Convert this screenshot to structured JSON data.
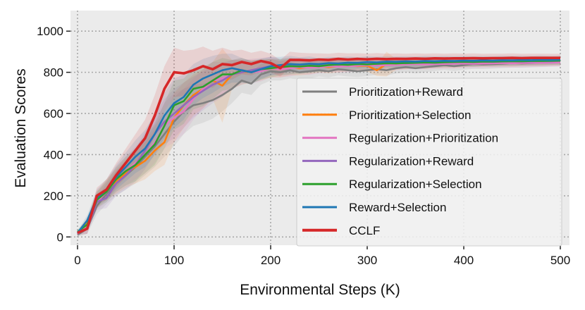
{
  "chart_data": {
    "type": "line",
    "title": "",
    "xlabel": "Environmental Steps (K)",
    "ylabel": "Evaluation Scores",
    "xlim": [
      0,
      500
    ],
    "ylim": [
      -40,
      1100
    ],
    "xticks": [
      0,
      100,
      200,
      300,
      400,
      500
    ],
    "xtick_labels": [
      "0",
      "100",
      "200",
      "300",
      "400",
      "500"
    ],
    "yticks": [
      0,
      200,
      400,
      600,
      800,
      1000
    ],
    "ytick_labels": [
      "0",
      "200",
      "400",
      "600",
      "800",
      "1000"
    ],
    "grid": true,
    "legend_position": "center-right",
    "x": [
      0,
      10,
      20,
      30,
      40,
      50,
      60,
      70,
      80,
      90,
      100,
      110,
      120,
      130,
      140,
      150,
      160,
      170,
      180,
      190,
      200,
      210,
      220,
      230,
      240,
      250,
      260,
      270,
      280,
      290,
      300,
      310,
      320,
      330,
      340,
      350,
      360,
      370,
      380,
      390,
      400,
      410,
      420,
      430,
      440,
      450,
      460,
      470,
      480,
      490,
      500
    ],
    "series": [
      {
        "name": "Prioritization+Reward",
        "color": "#7f7f7f",
        "values": [
          10,
          40,
          150,
          210,
          260,
          300,
          340,
          390,
          440,
          500,
          560,
          610,
          640,
          650,
          665,
          690,
          720,
          760,
          745,
          790,
          805,
          800,
          810,
          800,
          805,
          810,
          805,
          815,
          810,
          805,
          810,
          815,
          810,
          820,
          825,
          820,
          825,
          830,
          835,
          830,
          835,
          840,
          838,
          840,
          842,
          845,
          843,
          845,
          847,
          848,
          850
        ],
        "band": [
          10,
          25,
          40,
          50,
          60,
          70,
          80,
          90,
          100,
          110,
          120,
          110,
          100,
          95,
          90,
          80,
          70,
          60,
          55,
          50,
          45,
          40,
          40,
          35,
          35,
          30,
          30,
          30,
          30,
          28,
          28,
          28,
          26,
          26,
          25,
          25,
          25,
          24,
          24,
          24,
          23,
          23,
          22,
          22,
          22,
          22,
          21,
          21,
          21,
          20,
          20
        ]
      },
      {
        "name": "Prioritization+Selection",
        "color": "#ff7f0e",
        "values": [
          20,
          70,
          180,
          230,
          270,
          310,
          340,
          370,
          420,
          460,
          580,
          640,
          690,
          720,
          760,
          735,
          790,
          800,
          805,
          810,
          820,
          815,
          825,
          820,
          825,
          830,
          825,
          830,
          835,
          830,
          832,
          810,
          840,
          838,
          840,
          845,
          842,
          845,
          846,
          845,
          848,
          850,
          849,
          850,
          851,
          850,
          852,
          852,
          853,
          853,
          854
        ],
        "band": [
          10,
          25,
          40,
          50,
          60,
          70,
          80,
          90,
          100,
          110,
          120,
          110,
          100,
          95,
          90,
          180,
          70,
          60,
          55,
          50,
          45,
          40,
          40,
          35,
          35,
          30,
          30,
          30,
          30,
          28,
          28,
          28,
          60,
          26,
          25,
          25,
          25,
          24,
          24,
          24,
          23,
          23,
          22,
          22,
          22,
          22,
          21,
          21,
          21,
          20,
          20
        ]
      },
      {
        "name": "Regularization+Prioritization",
        "color": "#e377c2",
        "values": [
          15,
          60,
          170,
          220,
          280,
          320,
          360,
          400,
          460,
          540,
          580,
          610,
          670,
          720,
          760,
          770,
          790,
          810,
          800,
          805,
          820,
          815,
          820,
          825,
          822,
          825,
          830,
          828,
          830,
          832,
          835,
          833,
          835,
          836,
          838,
          840,
          838,
          840,
          841,
          842,
          843,
          842,
          843,
          844,
          845,
          844,
          845,
          846,
          846,
          847,
          848
        ],
        "band": [
          10,
          25,
          40,
          50,
          60,
          70,
          80,
          90,
          100,
          110,
          120,
          110,
          100,
          95,
          90,
          80,
          70,
          60,
          55,
          50,
          45,
          40,
          40,
          35,
          35,
          30,
          30,
          30,
          30,
          28,
          28,
          28,
          26,
          26,
          25,
          25,
          25,
          24,
          24,
          24,
          23,
          23,
          22,
          22,
          22,
          22,
          21,
          21,
          21,
          20,
          20
        ]
      },
      {
        "name": "Regularization+Reward",
        "color": "#9467bd",
        "values": [
          20,
          40,
          170,
          190,
          260,
          300,
          350,
          420,
          500,
          560,
          600,
          640,
          680,
          710,
          740,
          760,
          790,
          800,
          810,
          820,
          830,
          825,
          830,
          835,
          832,
          835,
          838,
          836,
          840,
          838,
          842,
          840,
          843,
          845,
          844,
          846,
          847,
          846,
          848,
          849,
          850,
          849,
          851,
          850,
          852,
          853,
          852,
          853,
          854,
          854,
          855
        ],
        "band": [
          10,
          25,
          40,
          50,
          60,
          70,
          80,
          90,
          100,
          110,
          120,
          110,
          100,
          95,
          90,
          80,
          70,
          60,
          55,
          50,
          45,
          40,
          40,
          35,
          35,
          30,
          30,
          30,
          30,
          28,
          28,
          28,
          26,
          26,
          25,
          25,
          25,
          24,
          24,
          24,
          23,
          23,
          22,
          22,
          22,
          22,
          21,
          21,
          21,
          20,
          20
        ]
      },
      {
        "name": "Regularization+Selection",
        "color": "#2ca02c",
        "values": [
          25,
          60,
          180,
          220,
          280,
          320,
          350,
          400,
          450,
          540,
          640,
          660,
          720,
          730,
          760,
          790,
          790,
          810,
          800,
          815,
          820,
          825,
          830,
          828,
          832,
          830,
          835,
          838,
          836,
          840,
          838,
          842,
          844,
          843,
          845,
          846,
          848,
          847,
          849,
          850,
          851,
          850,
          852,
          852,
          853,
          854,
          854,
          855,
          855,
          856,
          857
        ],
        "band": [
          10,
          25,
          40,
          50,
          60,
          70,
          80,
          90,
          100,
          110,
          120,
          110,
          100,
          95,
          90,
          80,
          70,
          60,
          55,
          50,
          45,
          40,
          40,
          35,
          35,
          30,
          30,
          30,
          30,
          28,
          28,
          28,
          26,
          26,
          25,
          25,
          25,
          24,
          24,
          24,
          23,
          23,
          22,
          22,
          22,
          22,
          21,
          21,
          21,
          20,
          20
        ]
      },
      {
        "name": "Reward+Selection",
        "color": "#1f77b4",
        "values": [
          20,
          80,
          190,
          230,
          290,
          340,
          390,
          430,
          500,
          590,
          650,
          680,
          740,
          770,
          790,
          810,
          820,
          810,
          800,
          815,
          830,
          835,
          840,
          838,
          842,
          840,
          845,
          843,
          847,
          846,
          850,
          848,
          852,
          851,
          853,
          852,
          855,
          854,
          856,
          855,
          857,
          856,
          858,
          857,
          859,
          858,
          860,
          859,
          861,
          860,
          862
        ],
        "band": [
          10,
          25,
          40,
          50,
          60,
          70,
          80,
          90,
          100,
          110,
          120,
          110,
          100,
          95,
          90,
          80,
          70,
          60,
          55,
          50,
          45,
          40,
          40,
          35,
          35,
          30,
          30,
          30,
          30,
          28,
          28,
          28,
          26,
          26,
          25,
          25,
          25,
          24,
          24,
          24,
          23,
          23,
          22,
          22,
          22,
          22,
          21,
          21,
          21,
          20,
          20
        ]
      },
      {
        "name": "CCLF",
        "color": "#d62728",
        "values": [
          20,
          40,
          200,
          230,
          300,
          360,
          420,
          480,
          590,
          720,
          800,
          795,
          810,
          830,
          815,
          840,
          835,
          850,
          840,
          855,
          845,
          820,
          860,
          860,
          858,
          862,
          860,
          865,
          862,
          865,
          863,
          866,
          864,
          866,
          865,
          867,
          866,
          868,
          867,
          868,
          868,
          869,
          868,
          869,
          869,
          870,
          869,
          870,
          870,
          870,
          870
        ],
        "band": [
          10,
          25,
          40,
          50,
          60,
          70,
          80,
          90,
          100,
          110,
          120,
          110,
          100,
          95,
          90,
          80,
          70,
          60,
          55,
          50,
          45,
          40,
          40,
          35,
          35,
          30,
          30,
          30,
          30,
          28,
          28,
          28,
          26,
          26,
          25,
          25,
          25,
          24,
          24,
          24,
          23,
          23,
          22,
          22,
          22,
          22,
          21,
          21,
          21,
          20,
          20
        ]
      }
    ]
  }
}
